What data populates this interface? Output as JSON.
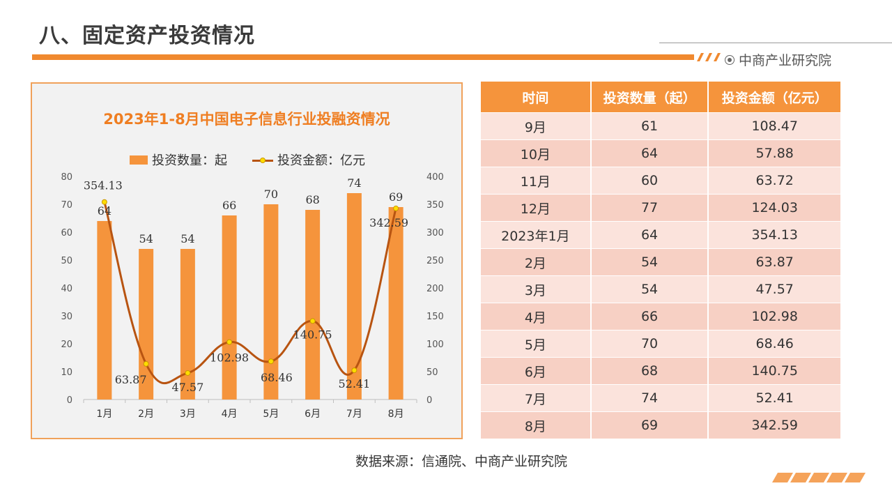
{
  "page": {
    "title": "八、固定资产投资情况",
    "brand": "中商产业研究院",
    "source": "数据来源：信通院、中商产业研究院"
  },
  "chart_data": {
    "type": "bar",
    "title": "2023年1-8月中国电子信息行业投融资情况",
    "categories": [
      "1月",
      "2月",
      "3月",
      "4月",
      "5月",
      "6月",
      "7月",
      "8月"
    ],
    "series": [
      {
        "name": "投资数量：起",
        "type": "bar",
        "axis": "left",
        "values": [
          64,
          54,
          54,
          66,
          70,
          68,
          74,
          69
        ]
      },
      {
        "name": "投资金额：亿元",
        "type": "line",
        "axis": "right",
        "values": [
          354.13,
          63.87,
          47.57,
          102.98,
          68.46,
          140.75,
          52.41,
          342.59
        ]
      }
    ],
    "y_left": {
      "min": 0,
      "max": 80,
      "step": 10
    },
    "y_right": {
      "min": 0,
      "max": 400,
      "step": 50
    },
    "legend_position": "top",
    "colors": {
      "bar": "#f5943c",
      "line": "#b85411",
      "marker": "#ffdd00"
    }
  },
  "table": {
    "headers": [
      "时间",
      "投资数量（起）",
      "投资金额（亿元）"
    ],
    "rows": [
      [
        "9月",
        "61",
        "108.47"
      ],
      [
        "10月",
        "64",
        "57.88"
      ],
      [
        "11月",
        "60",
        "63.72"
      ],
      [
        "12月",
        "77",
        "124.03"
      ],
      [
        "2023年1月",
        "64",
        "354.13"
      ],
      [
        "2月",
        "54",
        "63.87"
      ],
      [
        "3月",
        "54",
        "47.57"
      ],
      [
        "4月",
        "66",
        "102.98"
      ],
      [
        "5月",
        "70",
        "68.46"
      ],
      [
        "6月",
        "68",
        "140.75"
      ],
      [
        "7月",
        "74",
        "52.41"
      ],
      [
        "8月",
        "69",
        "342.59"
      ]
    ]
  }
}
